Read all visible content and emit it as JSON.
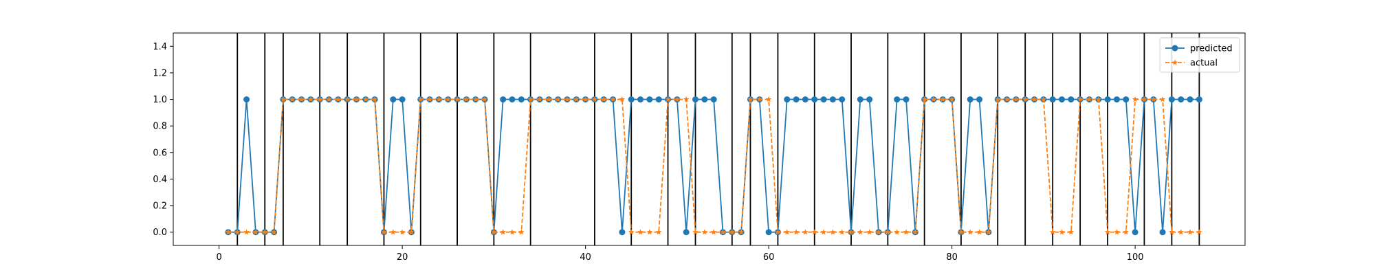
{
  "chart_data": {
    "type": "line",
    "title": "",
    "xlabel": "",
    "ylabel": "",
    "xlim": [
      -5,
      112
    ],
    "ylim": [
      -0.1,
      1.5
    ],
    "xticks": [
      0,
      20,
      40,
      60,
      80,
      100
    ],
    "yticks": [
      0.0,
      0.2,
      0.4,
      0.6,
      0.8,
      1.0,
      1.2,
      1.4
    ],
    "xtick_labels": [
      "0",
      "20",
      "40",
      "60",
      "80",
      "100"
    ],
    "ytick_labels": [
      "0.0",
      "0.2",
      "0.4",
      "0.6",
      "0.8",
      "1.0",
      "1.2",
      "1.4"
    ],
    "grid": false,
    "legend_position": "top-right",
    "vertical_lines_x": [
      2,
      5,
      7,
      11,
      14,
      18,
      22,
      26,
      30,
      34,
      41,
      45,
      49,
      52,
      56,
      58,
      61,
      65,
      69,
      73,
      77,
      81,
      85,
      88,
      91,
      94,
      97,
      101,
      104,
      107
    ],
    "x": [
      1,
      2,
      3,
      4,
      5,
      6,
      7,
      8,
      9,
      10,
      11,
      12,
      13,
      14,
      15,
      16,
      17,
      18,
      19,
      20,
      21,
      22,
      23,
      24,
      25,
      26,
      27,
      28,
      29,
      30,
      31,
      32,
      33,
      34,
      35,
      36,
      37,
      38,
      39,
      40,
      41,
      42,
      43,
      44,
      45,
      46,
      47,
      48,
      49,
      50,
      51,
      52,
      53,
      54,
      55,
      56,
      57,
      58,
      59,
      60,
      61,
      62,
      63,
      64,
      65,
      66,
      67,
      68,
      69,
      70,
      71,
      72,
      73,
      74,
      75,
      76,
      77,
      78,
      79,
      80,
      81,
      82,
      83,
      84,
      85,
      86,
      87,
      88,
      89,
      90,
      91,
      92,
      93,
      94,
      95,
      96,
      97,
      98,
      99,
      100,
      101,
      102,
      103,
      104,
      105,
      106,
      107
    ],
    "series": [
      {
        "name": "predicted",
        "color": "#1f77b4",
        "marker": "circle",
        "linestyle": "solid",
        "values": [
          0,
          0,
          1,
          0,
          0,
          0,
          1,
          1,
          1,
          1,
          1,
          1,
          1,
          1,
          1,
          1,
          1,
          0,
          1,
          1,
          0,
          1,
          1,
          1,
          1,
          1,
          1,
          1,
          1,
          0,
          1,
          1,
          1,
          1,
          1,
          1,
          1,
          1,
          1,
          1,
          1,
          1,
          1,
          0,
          1,
          1,
          1,
          1,
          1,
          1,
          0,
          1,
          1,
          1,
          0,
          0,
          0,
          1,
          1,
          0,
          0,
          1,
          1,
          1,
          1,
          1,
          1,
          1,
          0,
          1,
          1,
          0,
          0,
          1,
          1,
          0,
          1,
          1,
          1,
          1,
          0,
          1,
          1,
          0,
          1,
          1,
          1,
          1,
          1,
          1,
          1,
          1,
          1,
          1,
          1,
          1,
          1,
          1,
          1,
          0,
          1,
          1,
          0,
          1,
          1,
          1,
          1
        ]
      },
      {
        "name": "actual",
        "color": "#ff7f0e",
        "marker": "star",
        "linestyle": "dashed",
        "values": [
          0,
          0,
          0,
          0,
          0,
          0,
          1,
          1,
          1,
          1,
          1,
          1,
          1,
          1,
          1,
          1,
          1,
          0,
          0,
          0,
          0,
          1,
          1,
          1,
          1,
          1,
          1,
          1,
          1,
          0,
          0,
          0,
          0,
          1,
          1,
          1,
          1,
          1,
          1,
          1,
          1,
          1,
          1,
          1,
          0,
          0,
          0,
          0,
          1,
          1,
          1,
          0,
          0,
          0,
          0,
          0,
          0,
          1,
          1,
          1,
          0,
          0,
          0,
          0,
          0,
          0,
          0,
          0,
          0,
          0,
          0,
          0,
          0,
          0,
          0,
          0,
          1,
          1,
          1,
          1,
          0,
          0,
          0,
          0,
          1,
          1,
          1,
          1,
          1,
          1,
          0,
          0,
          0,
          1,
          1,
          1,
          0,
          0,
          0,
          1,
          1,
          1,
          1,
          0,
          0,
          0,
          0
        ]
      }
    ]
  }
}
